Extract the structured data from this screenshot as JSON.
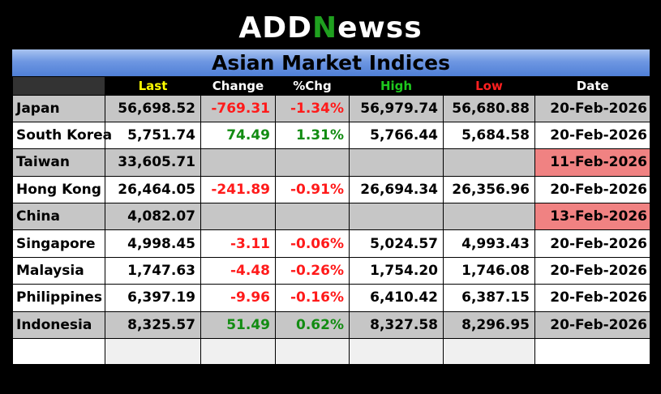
{
  "logo": {
    "part1": "ADD",
    "accent": "N",
    "part2": "ewss"
  },
  "title": "Asian Market Indices",
  "columns": {
    "last": "Last",
    "change": "Change",
    "pct": "%Chg",
    "high": "High",
    "low": "Low",
    "date": "Date"
  },
  "colors": {
    "header_bg": "#000000",
    "banner": "#6e97e2",
    "gain": "#128c12",
    "loss": "#ff1a1a",
    "stale_date": "#f08282"
  },
  "rows": [
    {
      "name": "Japan",
      "last": "56,698.52",
      "change": "-769.31",
      "pct": "-1.34%",
      "high": "56,979.74",
      "low": "56,680.88",
      "date": "20-Feb-2026"
    },
    {
      "name": "South Korea",
      "last": "5,751.74",
      "change": "74.49",
      "pct": "1.31%",
      "high": "5,766.44",
      "low": "5,684.58",
      "date": "20-Feb-2026"
    },
    {
      "name": "Taiwan",
      "last": "33,605.71",
      "change": "",
      "pct": "",
      "high": "",
      "low": "",
      "date": "11-Feb-2026"
    },
    {
      "name": "Hong Kong",
      "last": "26,464.05",
      "change": "-241.89",
      "pct": "-0.91%",
      "high": "26,694.34",
      "low": "26,356.96",
      "date": "20-Feb-2026"
    },
    {
      "name": "China",
      "last": "4,082.07",
      "change": "",
      "pct": "",
      "high": "",
      "low": "",
      "date": "13-Feb-2026"
    },
    {
      "name": "Singapore",
      "last": "4,998.45",
      "change": "-3.11",
      "pct": "-0.06%",
      "high": "5,024.57",
      "low": "4,993.43",
      "date": "20-Feb-2026"
    },
    {
      "name": "Malaysia",
      "last": "1,747.63",
      "change": "-4.48",
      "pct": "-0.26%",
      "high": "1,754.20",
      "low": "1,746.08",
      "date": "20-Feb-2026"
    },
    {
      "name": "Philippines",
      "last": "6,397.19",
      "change": "-9.96",
      "pct": "-0.16%",
      "high": "6,410.42",
      "low": "6,387.15",
      "date": "20-Feb-2026"
    },
    {
      "name": "Indonesia",
      "last": "8,325.57",
      "change": "51.49",
      "pct": "0.62%",
      "high": "8,327.58",
      "low": "8,296.95",
      "date": "20-Feb-2026"
    }
  ]
}
